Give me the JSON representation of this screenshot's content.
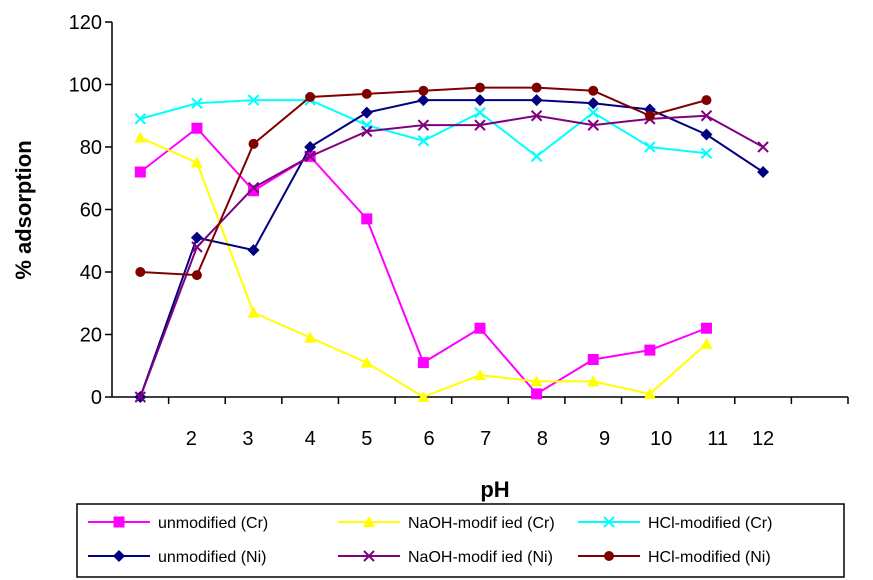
{
  "chart_data": {
    "type": "line",
    "title": "",
    "xlabel": "pH",
    "ylabel": "% adsorption",
    "ylim": [
      0,
      120
    ],
    "y_ticks": [
      0,
      20,
      40,
      60,
      80,
      100,
      120
    ],
    "category_slots": 13,
    "x_tick_labels": [
      {
        "label": "2",
        "slot": 0.9
      },
      {
        "label": "3",
        "slot": 1.9
      },
      {
        "label": "4",
        "slot": 3.0
      },
      {
        "label": "5",
        "slot": 4.0
      },
      {
        "label": "6",
        "slot": 5.1
      },
      {
        "label": "7",
        "slot": 6.1
      },
      {
        "label": "8",
        "slot": 7.1
      },
      {
        "label": "9",
        "slot": 8.2
      },
      {
        "label": "10",
        "slot": 9.2
      },
      {
        "label": "11",
        "slot": 10.2
      },
      {
        "label": "12",
        "slot": 11.0
      }
    ],
    "grid": false,
    "legend_position": "bottom",
    "series": [
      {
        "name": "unmodified (Cr)",
        "color": "#ff00ff",
        "marker": "square",
        "values": [
          72,
          86,
          66,
          77,
          57,
          11,
          22,
          1,
          12,
          15,
          22,
          null
        ]
      },
      {
        "name": "NaOH-modif ied (Cr)",
        "color": "#ffff00",
        "marker": "triangle",
        "values": [
          83,
          75,
          27,
          19,
          11,
          0,
          7,
          5,
          5,
          1,
          17,
          null
        ]
      },
      {
        "name": "HCl-modified (Cr)",
        "color": "#00ffff",
        "marker": "x",
        "values": [
          89,
          94,
          95,
          95,
          87,
          82,
          91,
          77,
          91,
          80,
          78,
          null
        ]
      },
      {
        "name": "unmodified (Ni)",
        "color": "#000080",
        "marker": "diamond",
        "values": [
          0,
          51,
          47,
          80,
          91,
          95,
          95,
          95,
          94,
          92,
          84,
          72
        ]
      },
      {
        "name": "NaOH-modif ied (Ni)",
        "color": "#800080",
        "marker": "x",
        "values": [
          0,
          48,
          67,
          77,
          85,
          87,
          87,
          90,
          87,
          89,
          90,
          80
        ]
      },
      {
        "name": "HCl-modified (Ni)",
        "color": "#800000",
        "marker": "circle",
        "values": [
          40,
          39,
          81,
          96,
          97,
          98,
          99,
          99,
          98,
          90,
          95,
          null
        ]
      }
    ]
  }
}
